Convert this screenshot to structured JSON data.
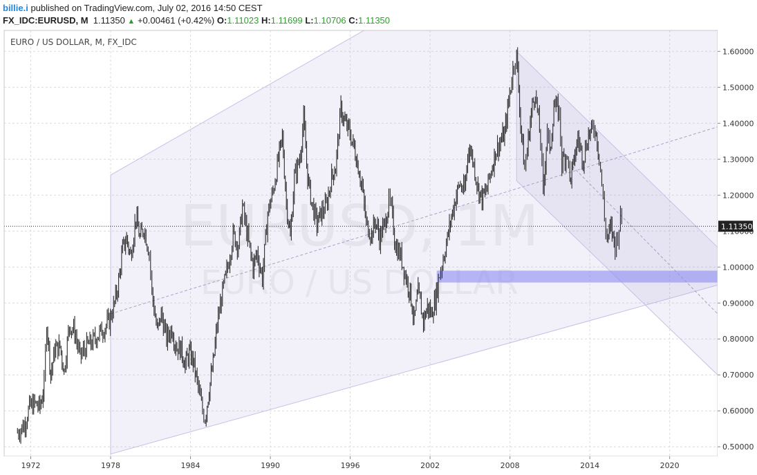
{
  "header": {
    "author": "billie.i",
    "published_text": " published on TradingView.com, July 02, 2016 14:50 CEST",
    "symbol": "FX_IDC:EURUSD",
    "interval": ", M",
    "last": "1.11350",
    "change": "+0.00461 (+0.42%)",
    "o_label": "O:",
    "o": "1.11023",
    "h_label": "H:",
    "h": "1.11699",
    "l_label": "L:",
    "l": "1.10706",
    "c_label": "C:",
    "c": "1.11350"
  },
  "watermark": {
    "line1": "EURUSD, 1M",
    "line2": "EURO / US DOLLAR"
  },
  "chart_data": {
    "type": "line",
    "title": "EURO / US DOLLAR, M, FX_IDC",
    "xlabel": "",
    "ylabel": "",
    "xlim": [
      1970.0,
      2023.6
    ],
    "ylim": [
      0.4735,
      1.6583
    ],
    "x_ticks": [
      "1972",
      "1978",
      "1984",
      "1990",
      "1996",
      "2002",
      "2008",
      "2014",
      "2020"
    ],
    "y_ticks": [
      "1.60000",
      "1.50000",
      "1.40000",
      "1.30000",
      "1.20000",
      "1.10000",
      "1.00000",
      "0.90000",
      "0.80000",
      "0.70000",
      "0.60000",
      "0.50000"
    ],
    "last_price": 1.1135,
    "last_price_label": "1.11350",
    "grid": true,
    "series": [
      {
        "values": [
          [
            1971.0,
            0.54
          ],
          [
            1971.5,
            0.56
          ],
          [
            1971.9,
            0.61
          ],
          [
            1972.3,
            0.62
          ],
          [
            1972.7,
            0.61
          ],
          [
            1973.0,
            0.67
          ],
          [
            1973.2,
            0.85
          ],
          [
            1973.5,
            0.7
          ],
          [
            1973.8,
            0.77
          ],
          [
            1974.2,
            0.78
          ],
          [
            1974.5,
            0.71
          ],
          [
            1974.9,
            0.84
          ],
          [
            1975.3,
            0.82
          ],
          [
            1975.7,
            0.75
          ],
          [
            1976.2,
            0.78
          ],
          [
            1976.6,
            0.79
          ],
          [
            1977.0,
            0.81
          ],
          [
            1977.5,
            0.83
          ],
          [
            1977.9,
            0.85
          ],
          [
            1978.3,
            0.9
          ],
          [
            1978.6,
            0.96
          ],
          [
            1978.9,
            1.05
          ],
          [
            1979.2,
            1.08
          ],
          [
            1979.5,
            1.03
          ],
          [
            1979.9,
            1.14
          ],
          [
            1980.2,
            1.08
          ],
          [
            1980.5,
            1.11
          ],
          [
            1980.9,
            1.04
          ],
          [
            1981.1,
            0.93
          ],
          [
            1981.5,
            0.82
          ],
          [
            1981.8,
            0.87
          ],
          [
            1982.2,
            0.8
          ],
          [
            1982.6,
            0.83
          ],
          [
            1982.9,
            0.78
          ],
          [
            1983.3,
            0.77
          ],
          [
            1983.6,
            0.73
          ],
          [
            1983.9,
            0.76
          ],
          [
            1984.2,
            0.74
          ],
          [
            1984.5,
            0.68
          ],
          [
            1984.9,
            0.6
          ],
          [
            1985.1,
            0.58
          ],
          [
            1985.4,
            0.66
          ],
          [
            1985.7,
            0.73
          ],
          [
            1986.0,
            0.84
          ],
          [
            1986.4,
            0.93
          ],
          [
            1986.8,
            1.0
          ],
          [
            1987.2,
            1.09
          ],
          [
            1987.6,
            1.06
          ],
          [
            1987.9,
            1.17
          ],
          [
            1988.3,
            1.08
          ],
          [
            1988.7,
            1.0
          ],
          [
            1989.0,
            1.04
          ],
          [
            1989.4,
            0.97
          ],
          [
            1989.8,
            1.15
          ],
          [
            1990.2,
            1.21
          ],
          [
            1990.6,
            1.3
          ],
          [
            1990.9,
            1.36
          ],
          [
            1991.2,
            1.18
          ],
          [
            1991.5,
            1.08
          ],
          [
            1991.8,
            1.25
          ],
          [
            1992.2,
            1.3
          ],
          [
            1992.5,
            1.41
          ],
          [
            1992.8,
            1.25
          ],
          [
            1993.1,
            1.18
          ],
          [
            1993.5,
            1.12
          ],
          [
            1993.8,
            1.15
          ],
          [
            1994.2,
            1.17
          ],
          [
            1994.6,
            1.25
          ],
          [
            1994.9,
            1.28
          ],
          [
            1995.3,
            1.44
          ],
          [
            1995.6,
            1.4
          ],
          [
            1995.9,
            1.38
          ],
          [
            1996.3,
            1.33
          ],
          [
            1996.6,
            1.28
          ],
          [
            1996.9,
            1.22
          ],
          [
            1997.2,
            1.12
          ],
          [
            1997.6,
            1.09
          ],
          [
            1997.9,
            1.13
          ],
          [
            1998.2,
            1.08
          ],
          [
            1998.6,
            1.12
          ],
          [
            1998.9,
            1.18
          ],
          [
            1999.1,
            1.16
          ],
          [
            1999.4,
            1.06
          ],
          [
            1999.8,
            1.03
          ],
          [
            2000.2,
            0.97
          ],
          [
            2000.5,
            0.93
          ],
          [
            2000.8,
            0.85
          ],
          [
            2001.1,
            0.93
          ],
          [
            2001.5,
            0.85
          ],
          [
            2001.8,
            0.89
          ],
          [
            2002.1,
            0.87
          ],
          [
            2002.4,
            0.91
          ],
          [
            2002.7,
            0.98
          ],
          [
            2002.9,
            1.01
          ],
          [
            2003.3,
            1.08
          ],
          [
            2003.6,
            1.14
          ],
          [
            2003.9,
            1.19
          ],
          [
            2004.2,
            1.23
          ],
          [
            2004.6,
            1.21
          ],
          [
            2004.9,
            1.34
          ],
          [
            2005.2,
            1.3
          ],
          [
            2005.6,
            1.22
          ],
          [
            2005.9,
            1.19
          ],
          [
            2006.2,
            1.21
          ],
          [
            2006.6,
            1.27
          ],
          [
            2006.9,
            1.32
          ],
          [
            2007.3,
            1.35
          ],
          [
            2007.6,
            1.37
          ],
          [
            2007.9,
            1.46
          ],
          [
            2008.3,
            1.57
          ],
          [
            2008.5,
            1.59
          ],
          [
            2008.8,
            1.4
          ],
          [
            2009.1,
            1.27
          ],
          [
            2009.3,
            1.33
          ],
          [
            2009.6,
            1.43
          ],
          [
            2009.9,
            1.49
          ],
          [
            2010.3,
            1.35
          ],
          [
            2010.5,
            1.2
          ],
          [
            2010.8,
            1.39
          ],
          [
            2011.0,
            1.31
          ],
          [
            2011.3,
            1.45
          ],
          [
            2011.7,
            1.43
          ],
          [
            2011.9,
            1.29
          ],
          [
            2012.3,
            1.32
          ],
          [
            2012.5,
            1.24
          ],
          [
            2012.8,
            1.29
          ],
          [
            2013.1,
            1.36
          ],
          [
            2013.5,
            1.3
          ],
          [
            2013.9,
            1.37
          ],
          [
            2014.2,
            1.38
          ],
          [
            2014.4,
            1.39
          ],
          [
            2014.7,
            1.31
          ],
          [
            2014.9,
            1.23
          ],
          [
            2015.1,
            1.13
          ],
          [
            2015.3,
            1.08
          ],
          [
            2015.6,
            1.11
          ],
          [
            2015.9,
            1.06
          ],
          [
            2016.1,
            1.09
          ],
          [
            2016.3,
            1.14
          ],
          [
            2016.5,
            1.11
          ]
        ]
      }
    ],
    "drawings": {
      "channel": "ascending parallel channel from 1978 with dashed midline",
      "descending_channel": "descending channel from the 2008 high",
      "support_zone": [
        0.957,
        0.99
      ]
    }
  }
}
